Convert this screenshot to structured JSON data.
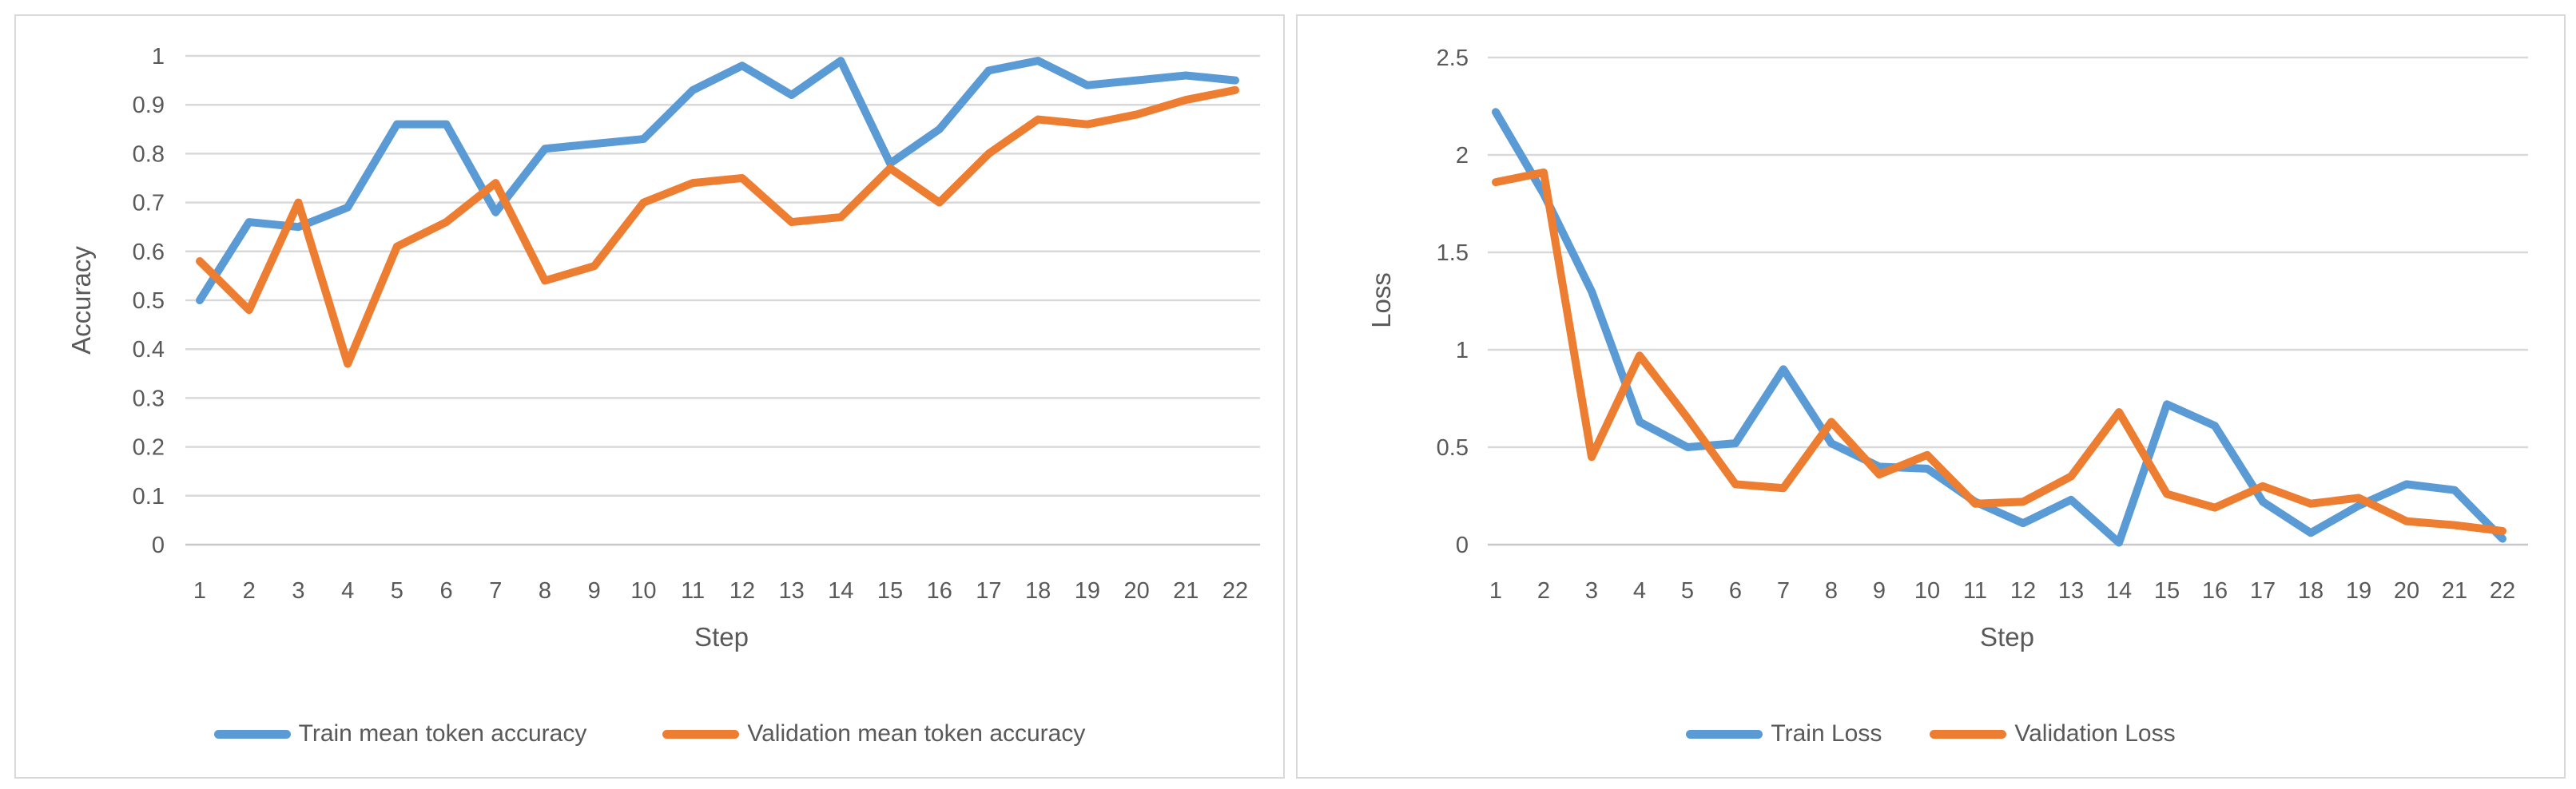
{
  "colors": {
    "train_series": "#5B9BD5",
    "validation_series": "#ED7D31",
    "gridline": "#D9D9D9",
    "zero_line": "#C8C8C8",
    "text": "#595959",
    "panel_border": "#D9D9D9",
    "background": "#FFFFFF"
  },
  "chart_data": [
    {
      "type": "line",
      "title": "",
      "xlabel": "Step",
      "ylabel": "Accuracy",
      "x": [
        1,
        2,
        3,
        4,
        5,
        6,
        7,
        8,
        9,
        10,
        11,
        12,
        13,
        14,
        15,
        16,
        17,
        18,
        19,
        20,
        21,
        22
      ],
      "ylim": [
        0,
        1
      ],
      "yticks": [
        0,
        0.1,
        0.2,
        0.3,
        0.4,
        0.5,
        0.6,
        0.7,
        0.8,
        0.9,
        1
      ],
      "ytick_labels": [
        "0",
        "0.1",
        "0.2",
        "0.3",
        "0.4",
        "0.5",
        "0.6",
        "0.7",
        "0.8",
        "0.9",
        "1"
      ],
      "grid": true,
      "legend_position": "bottom",
      "series": [
        {
          "name": "Train mean token accuracy",
          "color": "#5B9BD5",
          "values": [
            0.5,
            0.66,
            0.65,
            0.69,
            0.86,
            0.86,
            0.68,
            0.81,
            0.82,
            0.83,
            0.93,
            0.98,
            0.92,
            0.99,
            0.78,
            0.85,
            0.97,
            0.99,
            0.94,
            0.95,
            0.96,
            0.95
          ]
        },
        {
          "name": "Validation mean token accuracy",
          "color": "#ED7D31",
          "values": [
            0.58,
            0.48,
            0.7,
            0.37,
            0.61,
            0.66,
            0.74,
            0.54,
            0.57,
            0.7,
            0.74,
            0.75,
            0.66,
            0.67,
            0.77,
            0.7,
            0.8,
            0.87,
            0.86,
            0.88,
            0.91,
            0.93
          ]
        }
      ]
    },
    {
      "type": "line",
      "title": "",
      "xlabel": "Step",
      "ylabel": "Loss",
      "x": [
        1,
        2,
        3,
        4,
        5,
        6,
        7,
        8,
        9,
        10,
        11,
        12,
        13,
        14,
        15,
        16,
        17,
        18,
        19,
        20,
        21,
        22
      ],
      "ylim": [
        0,
        2.5
      ],
      "yticks": [
        0,
        0.5,
        1,
        1.5,
        2,
        2.5
      ],
      "ytick_labels": [
        "0",
        "0.5",
        "1",
        "1.5",
        "2",
        "2.5"
      ],
      "grid": true,
      "legend_position": "bottom",
      "series": [
        {
          "name": "Train Loss",
          "color": "#5B9BD5",
          "values": [
            2.22,
            1.8,
            1.3,
            0.63,
            0.5,
            0.52,
            0.9,
            0.52,
            0.4,
            0.39,
            0.22,
            0.11,
            0.23,
            0.01,
            0.72,
            0.61,
            0.22,
            0.06,
            0.2,
            0.31,
            0.28,
            0.03
          ]
        },
        {
          "name": "Validation Loss",
          "color": "#ED7D31",
          "values": [
            1.86,
            1.91,
            0.45,
            0.97,
            0.65,
            0.31,
            0.29,
            0.63,
            0.36,
            0.46,
            0.21,
            0.22,
            0.35,
            0.68,
            0.26,
            0.19,
            0.3,
            0.21,
            0.24,
            0.12,
            0.1,
            0.07
          ]
        }
      ]
    }
  ]
}
